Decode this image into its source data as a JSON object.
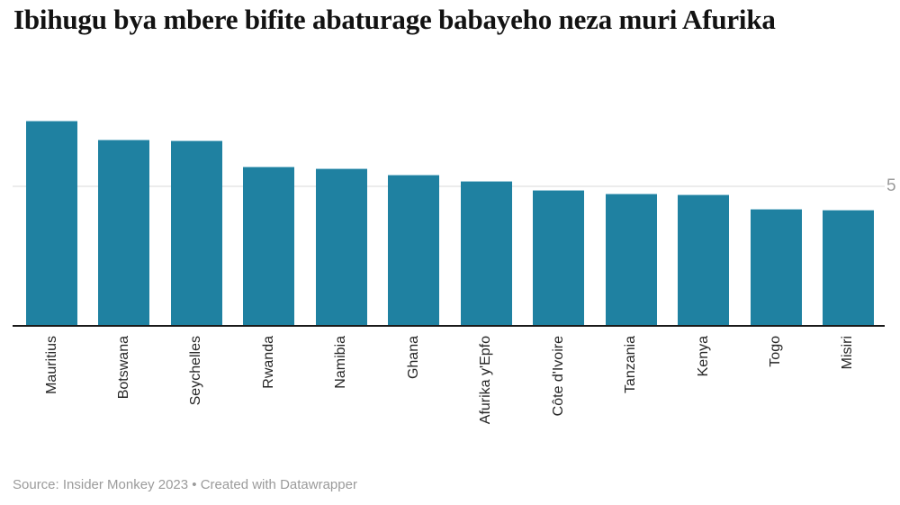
{
  "header": {
    "title": "Ibihugu bya mbere bifite abaturage babayeho neza muri Afurika"
  },
  "axis": {
    "tick_label": "5"
  },
  "footer": {
    "text": "Source: Insider Monkey 2023 • Created with Datawrapper"
  },
  "colors": {
    "bar": "#1f81a1",
    "axis_line": "#1a1a1a",
    "gridline": "#ececec",
    "tick_text": "#9b9b9b",
    "label_text": "#262626",
    "title_text": "#121212",
    "footer_text": "#9b9b9b"
  },
  "chart_data": {
    "type": "bar",
    "title": "Ibihugu bya mbere bifite abaturage babayeho neza muri Afurika",
    "categories": [
      "Mauritius",
      "Botswana",
      "Seychelles",
      "Rwanda",
      "Namibia",
      "Ghana",
      "Afurika y'Epfo",
      "Côte d'Ivoire",
      "Tanzania",
      "Kenya",
      "Togo",
      "Misiri"
    ],
    "values": [
      7.35,
      6.67,
      6.65,
      5.7,
      5.65,
      5.42,
      5.2,
      4.88,
      4.73,
      4.69,
      4.2,
      4.17
    ],
    "xlabel": "",
    "ylabel": "",
    "ylim": [
      0,
      7.4
    ],
    "yticks": [
      5
    ],
    "grid": true,
    "legend_position": "none",
    "x_label_rotation": -90,
    "source": "Insider Monkey 2023"
  }
}
